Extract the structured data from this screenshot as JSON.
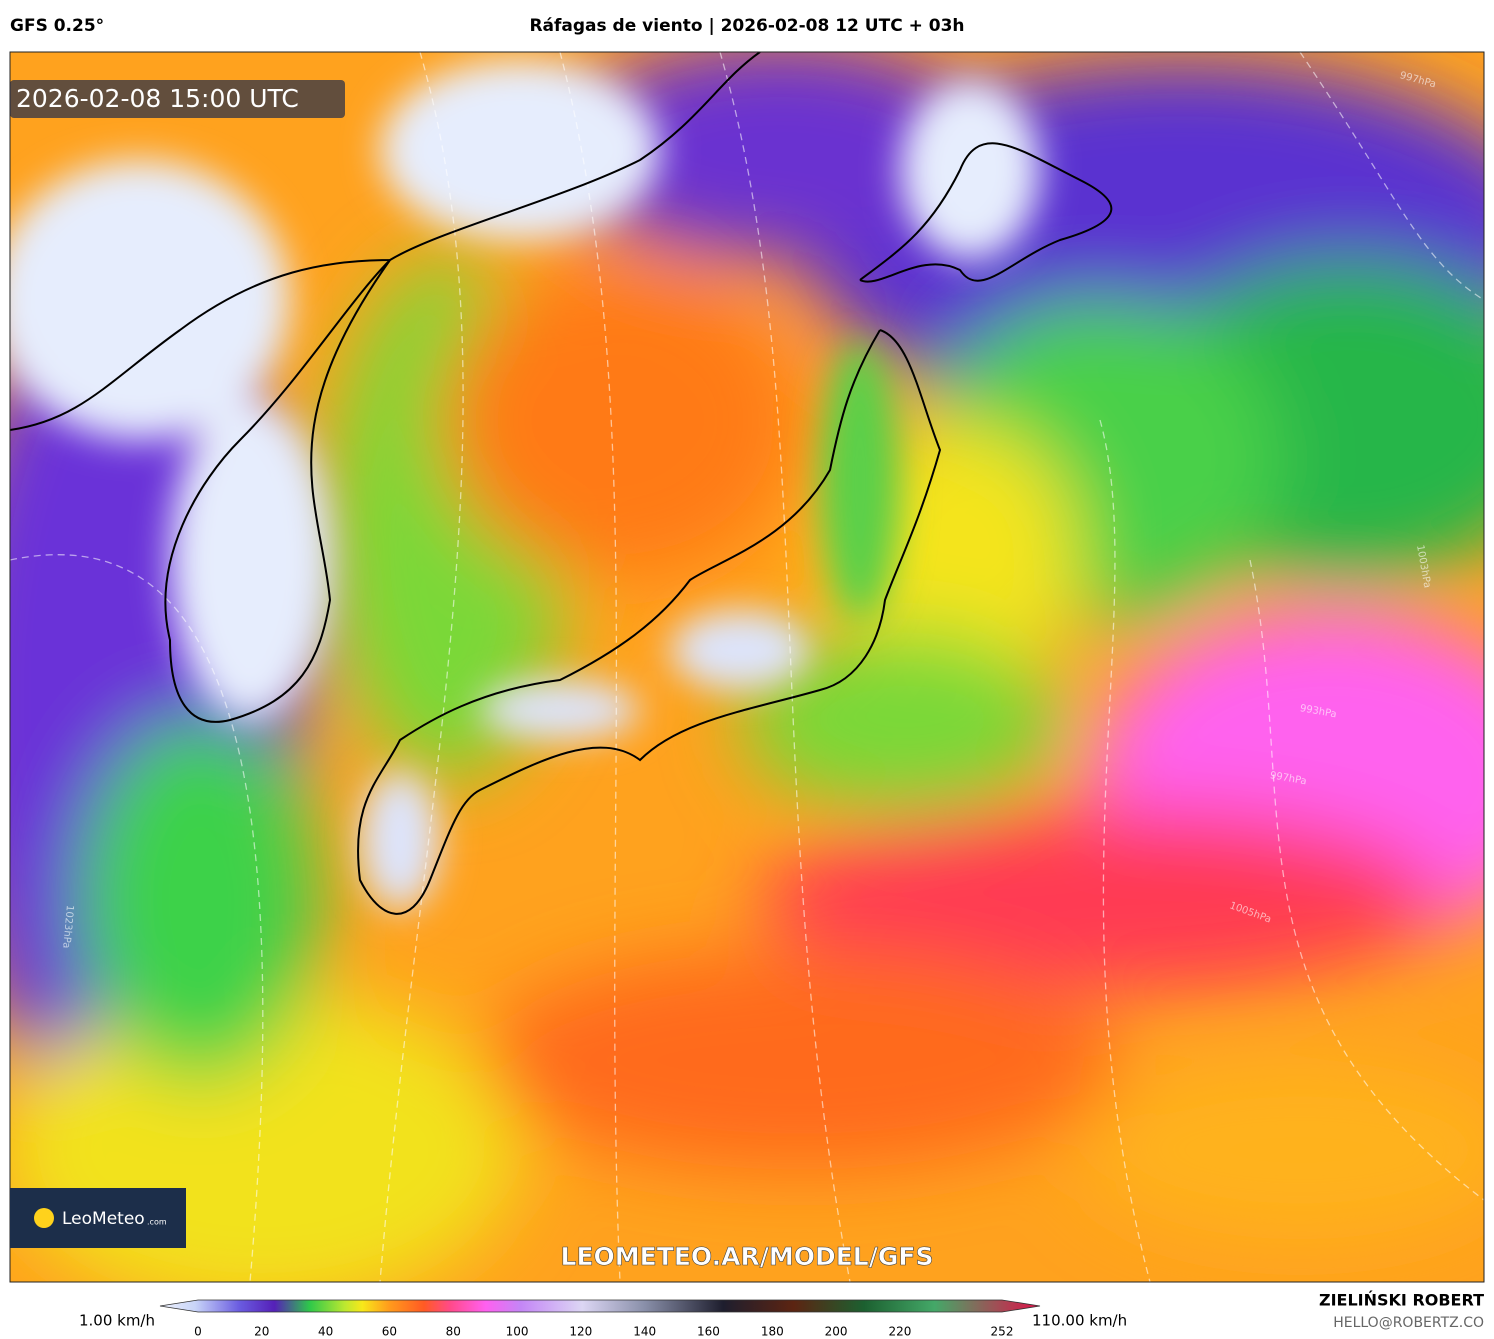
{
  "header": {
    "model": "GFS 0.25°",
    "title": "Ráfagas de viento | 2026-02-08 12 UTC + 03h"
  },
  "map": {
    "valid_time": "2026-02-08 15:00 UTC",
    "watermark": "LEOMETEO.AR/MODEL/GFS",
    "logo": {
      "name": "LeoMeteo",
      "suffix": ".com"
    },
    "isobar_labels": [
      "997hPa",
      "993hPa",
      "997hPa",
      "1003hPa",
      "1005hPa",
      "1023hPa"
    ]
  },
  "colorbar": {
    "min_label": "1.00 km/h",
    "max_label": "110.00 km/h",
    "ticks": [
      0,
      20,
      40,
      60,
      80,
      100,
      120,
      140,
      160,
      180,
      200,
      220,
      252
    ]
  },
  "credits": {
    "author": "ZIELIŃSKI ROBERT",
    "email": "HELLO@ROBERTZ.CO"
  }
}
